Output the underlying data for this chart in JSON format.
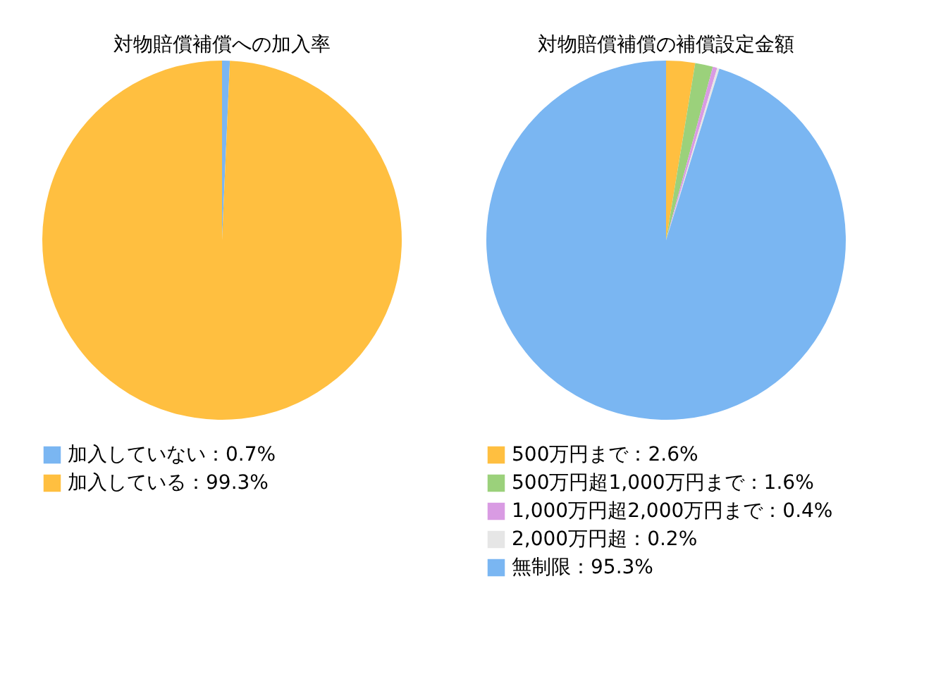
{
  "chart_data": [
    {
      "type": "pie",
      "title": "対物賠償補償への加入率",
      "categories": [
        "加入していない：0.7%",
        "加入している：99.3%"
      ],
      "values": [
        0.7,
        99.3
      ],
      "colors": [
        "#7ab6f2",
        "#ffbf40"
      ],
      "legend": "bottom"
    },
    {
      "type": "pie",
      "title": "対物賠償補償の補償設定金額",
      "categories": [
        "500万円まで：2.6%",
        "500万円超1,000万円まで：1.6%",
        "1,000万円超2,000万円まで：0.4%",
        "2,000万円超：0.2%",
        "無制限：95.3%"
      ],
      "values": [
        2.6,
        1.6,
        0.4,
        0.2,
        95.3
      ],
      "colors": [
        "#ffbf40",
        "#9bd17b",
        "#d99be3",
        "#e6e6e6",
        "#7ab6f2"
      ],
      "legend": "bottom"
    }
  ]
}
